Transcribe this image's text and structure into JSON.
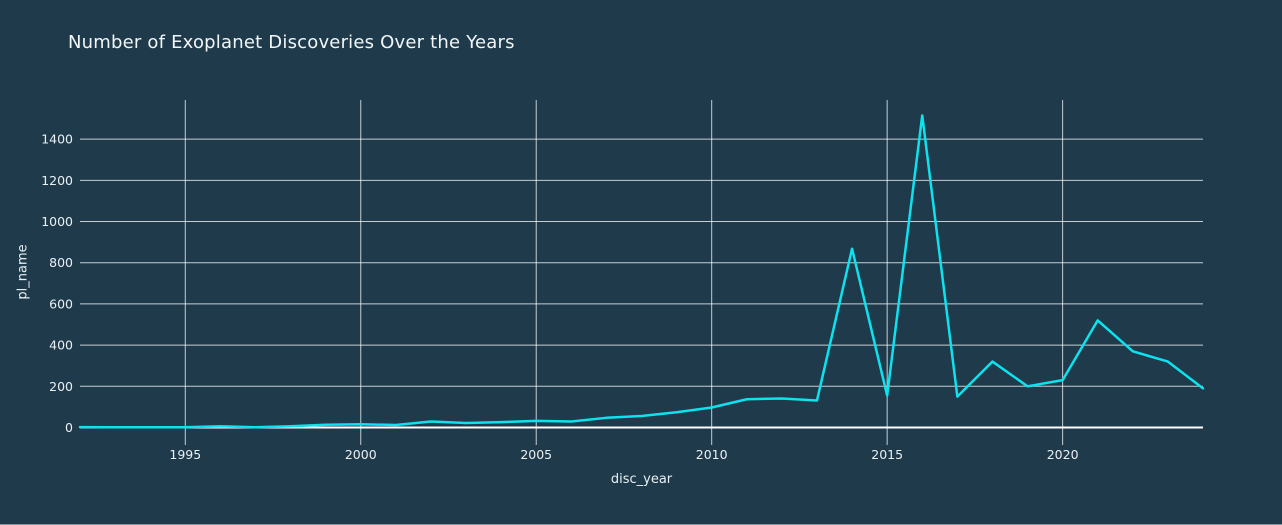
{
  "chart_data": {
    "type": "line",
    "title": "Number of Exoplanet Discoveries Over the Years",
    "xlabel": "disc_year",
    "ylabel": "pl_name",
    "x": [
      1992,
      1993,
      1994,
      1995,
      1996,
      1997,
      1998,
      1999,
      2000,
      2001,
      2002,
      2003,
      2004,
      2005,
      2006,
      2007,
      2008,
      2009,
      2010,
      2011,
      2012,
      2013,
      2014,
      2015,
      2016,
      2017,
      2018,
      2019,
      2020,
      2021,
      2022,
      2023,
      2024
    ],
    "values": [
      2,
      1,
      1,
      1,
      6,
      1,
      6,
      13,
      16,
      12,
      29,
      22,
      26,
      32,
      29,
      47,
      56,
      74,
      97,
      137,
      141,
      131,
      868,
      155,
      1515,
      150,
      320,
      200,
      230,
      520,
      370,
      320,
      190
    ],
    "x_ticks": [
      1995,
      2000,
      2005,
      2010,
      2015,
      2020
    ],
    "y_ticks": [
      0,
      200,
      400,
      600,
      800,
      1000,
      1200,
      1400
    ],
    "x_range": [
      1992,
      2024
    ],
    "y_range": [
      -85,
      1590
    ],
    "grid": true,
    "legend": "none",
    "colors": {
      "background": "#1f3a4b",
      "line": "#0de2ee",
      "grid": "#ffffff",
      "zeroline": "#ffffff",
      "text": "#e9f0f4"
    }
  }
}
